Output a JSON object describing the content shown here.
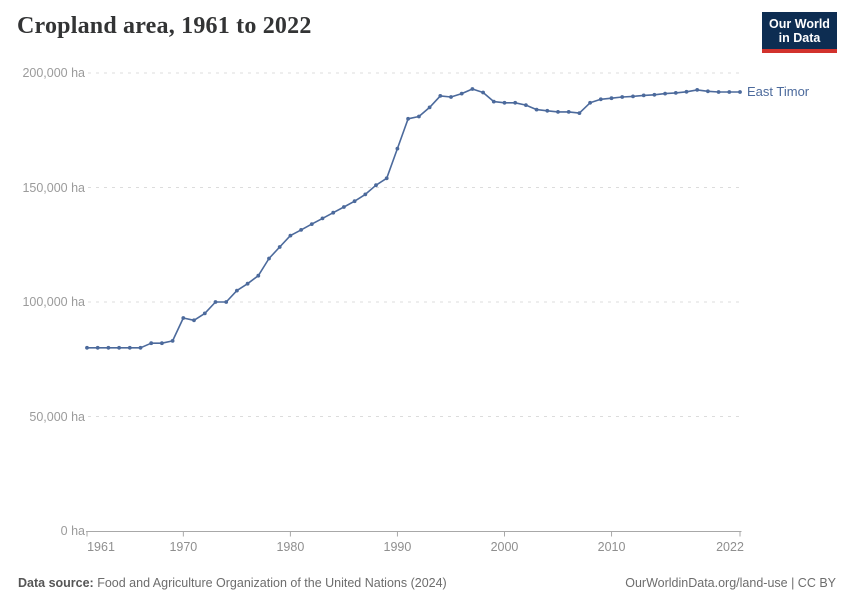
{
  "header": {
    "title": "Cropland area, 1961 to 2022"
  },
  "logo": {
    "line1": "Our World",
    "line2": "in Data",
    "bg_color": "#0d2d52",
    "accent_color": "#d2322d"
  },
  "chart_data": {
    "type": "line",
    "title": "Cropland area, 1961 to 2022",
    "series": [
      {
        "name": "East Timor",
        "color": "#4c6a9c",
        "x": [
          1961,
          1962,
          1963,
          1964,
          1965,
          1966,
          1967,
          1968,
          1969,
          1970,
          1971,
          1972,
          1973,
          1974,
          1975,
          1976,
          1977,
          1978,
          1979,
          1980,
          1981,
          1982,
          1983,
          1984,
          1985,
          1986,
          1987,
          1988,
          1989,
          1990,
          1991,
          1992,
          1993,
          1994,
          1995,
          1996,
          1997,
          1998,
          1999,
          2000,
          2001,
          2002,
          2003,
          2004,
          2005,
          2006,
          2007,
          2008,
          2009,
          2010,
          2011,
          2012,
          2013,
          2014,
          2015,
          2016,
          2017,
          2018,
          2019,
          2020,
          2021,
          2022
        ],
        "values": [
          80000,
          80000,
          80000,
          80000,
          80000,
          80000,
          82000,
          82000,
          83000,
          93000,
          92000,
          95000,
          100000,
          100000,
          105000,
          108000,
          111500,
          119000,
          124000,
          129000,
          131500,
          134000,
          136500,
          139000,
          141500,
          144000,
          147000,
          151000,
          154000,
          167000,
          180000,
          181000,
          185000,
          190000,
          189500,
          191000,
          193000,
          191500,
          187500,
          187000,
          187000,
          186000,
          184000,
          183500,
          183000,
          183000,
          182500,
          187000,
          188500,
          189000,
          189500,
          189800,
          190200,
          190500,
          191000,
          191300,
          191800,
          192600,
          192000,
          191700,
          191700,
          191700
        ]
      }
    ],
    "xlabel": "",
    "ylabel": "",
    "unit": "ha",
    "ylim": [
      0,
      200000
    ],
    "xlim": [
      1961,
      2022
    ],
    "yticks": [
      {
        "value": 0,
        "label": "0 ha"
      },
      {
        "value": 50000,
        "label": "50,000 ha"
      },
      {
        "value": 100000,
        "label": "100,000 ha"
      },
      {
        "value": 150000,
        "label": "150,000 ha"
      },
      {
        "value": 200000,
        "label": "200,000 ha"
      }
    ],
    "xticks": [
      1961,
      1970,
      1980,
      1990,
      2000,
      2010,
      2022
    ],
    "grid": "horizontal-dashed",
    "legend_position": "line-end-label",
    "markers": true
  },
  "footer": {
    "source_label": "Data source:",
    "source_text": " Food and Agriculture Organization of the United Nations (2024)",
    "credit": "OurWorldinData.org/land-use | CC BY"
  }
}
